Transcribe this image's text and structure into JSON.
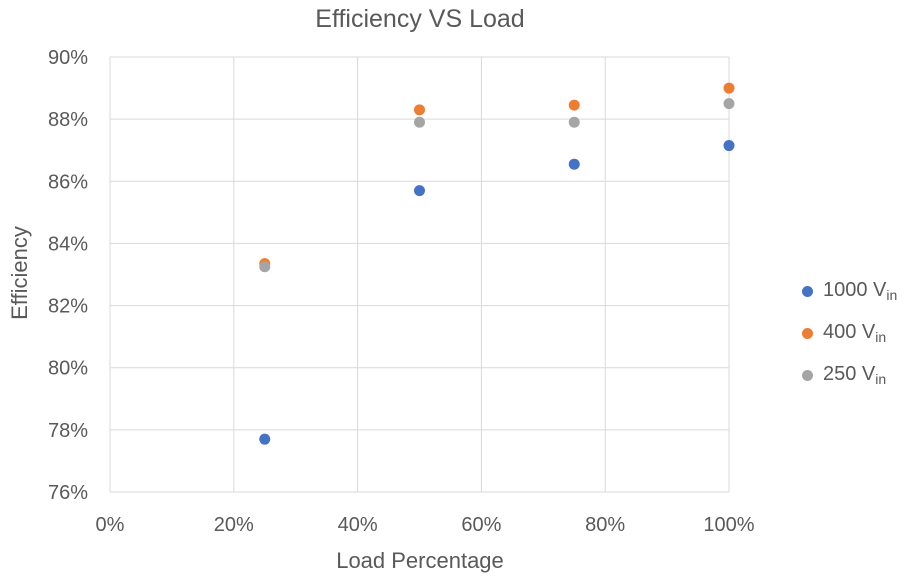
{
  "chart_data": {
    "type": "scatter",
    "title": "Efficiency VS Load",
    "xlabel": "Load Percentage",
    "ylabel": "Efficiency",
    "xlim": [
      0,
      100
    ],
    "ylim": [
      76,
      90
    ],
    "xticks": [
      0,
      20,
      40,
      60,
      80,
      100
    ],
    "yticks": [
      76,
      78,
      80,
      82,
      84,
      86,
      88,
      90
    ],
    "xtick_labels": [
      "0%",
      "20%",
      "40%",
      "60%",
      "80%",
      "100%"
    ],
    "ytick_labels": [
      "76%",
      "78%",
      "80%",
      "82%",
      "84%",
      "86%",
      "88%",
      "90%"
    ],
    "grid": true,
    "legend_position": "right",
    "series": [
      {
        "name": "1000 V",
        "subscript": "in",
        "color": "#4472C4",
        "x": [
          25,
          50,
          75,
          100
        ],
        "y": [
          77.7,
          85.7,
          86.55,
          87.15
        ]
      },
      {
        "name": "400 V",
        "subscript": "in",
        "color": "#ED7D31",
        "x": [
          25,
          50,
          75,
          100
        ],
        "y": [
          83.35,
          88.3,
          88.45,
          89.0
        ]
      },
      {
        "name": "250 V",
        "subscript": "in",
        "color": "#A5A5A5",
        "x": [
          25,
          50,
          75,
          100
        ],
        "y": [
          83.25,
          87.9,
          87.9,
          88.5
        ]
      }
    ]
  }
}
